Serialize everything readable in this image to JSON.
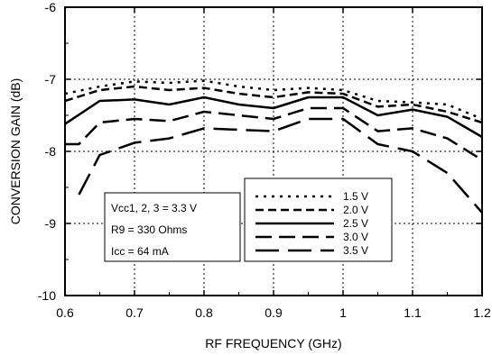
{
  "chart_data": {
    "type": "line",
    "title": "",
    "xlabel": "RF FREQUENCY (GHz)",
    "ylabel": "CONVERSION GAIN (dB)",
    "xlim": [
      0.6,
      1.2
    ],
    "ylim": [
      -10,
      -6
    ],
    "x_ticks": [
      "0.6",
      "0.7",
      "0.8",
      "0.9",
      "1",
      "1.1",
      "1.2"
    ],
    "y_ticks": [
      "-6",
      "-7",
      "-8",
      "-9",
      "-10"
    ],
    "grid": true,
    "legend_placement": "bottom-right",
    "annotation": [
      "Vcc1, 2, 3 = 3.3 V",
      "R9 = 330 Ohms",
      "Icc = 64 mA"
    ],
    "series": [
      {
        "name": "1.5 V",
        "dash": "dot",
        "x": [
          0.6,
          0.65,
          0.7,
          0.75,
          0.8,
          0.85,
          0.9,
          0.95,
          1.0,
          1.05,
          1.1,
          1.15,
          1.2
        ],
        "y": [
          -7.2,
          -7.1,
          -7.03,
          -7.05,
          -7.02,
          -7.1,
          -7.15,
          -7.12,
          -7.15,
          -7.3,
          -7.32,
          -7.35,
          -7.55
        ]
      },
      {
        "name": "2.0 V",
        "dash": "short",
        "x": [
          0.6,
          0.65,
          0.7,
          0.75,
          0.8,
          0.85,
          0.9,
          0.95,
          1.0,
          1.05,
          1.1,
          1.15,
          1.2
        ],
        "y": [
          -7.3,
          -7.15,
          -7.1,
          -7.15,
          -7.12,
          -7.2,
          -7.25,
          -7.18,
          -7.2,
          -7.38,
          -7.35,
          -7.45,
          -7.6
        ]
      },
      {
        "name": "2.5 V",
        "dash": "solid",
        "x": [
          0.6,
          0.65,
          0.7,
          0.75,
          0.8,
          0.85,
          0.9,
          0.95,
          1.0,
          1.05,
          1.1,
          1.15,
          1.2
        ],
        "y": [
          -7.62,
          -7.3,
          -7.28,
          -7.35,
          -7.25,
          -7.35,
          -7.4,
          -7.25,
          -7.25,
          -7.5,
          -7.42,
          -7.52,
          -7.8
        ]
      },
      {
        "name": "3.0 V",
        "dash": "long",
        "x": [
          0.6,
          0.62,
          0.65,
          0.7,
          0.75,
          0.8,
          0.85,
          0.9,
          0.95,
          1.0,
          1.05,
          1.1,
          1.15,
          1.2
        ],
        "y": [
          -7.9,
          -7.9,
          -7.6,
          -7.55,
          -7.58,
          -7.45,
          -7.5,
          -7.55,
          -7.4,
          -7.4,
          -7.72,
          -7.68,
          -7.82,
          -8.12
        ]
      },
      {
        "name": "3.5 V",
        "dash": "longer",
        "x": [
          0.62,
          0.65,
          0.7,
          0.75,
          0.8,
          0.85,
          0.9,
          0.95,
          1.0,
          1.05,
          1.1,
          1.15,
          1.2
        ],
        "y": [
          -8.6,
          -8.05,
          -7.88,
          -7.82,
          -7.68,
          -7.7,
          -7.72,
          -7.55,
          -7.55,
          -7.9,
          -8.0,
          -8.3,
          -8.85
        ]
      }
    ]
  }
}
